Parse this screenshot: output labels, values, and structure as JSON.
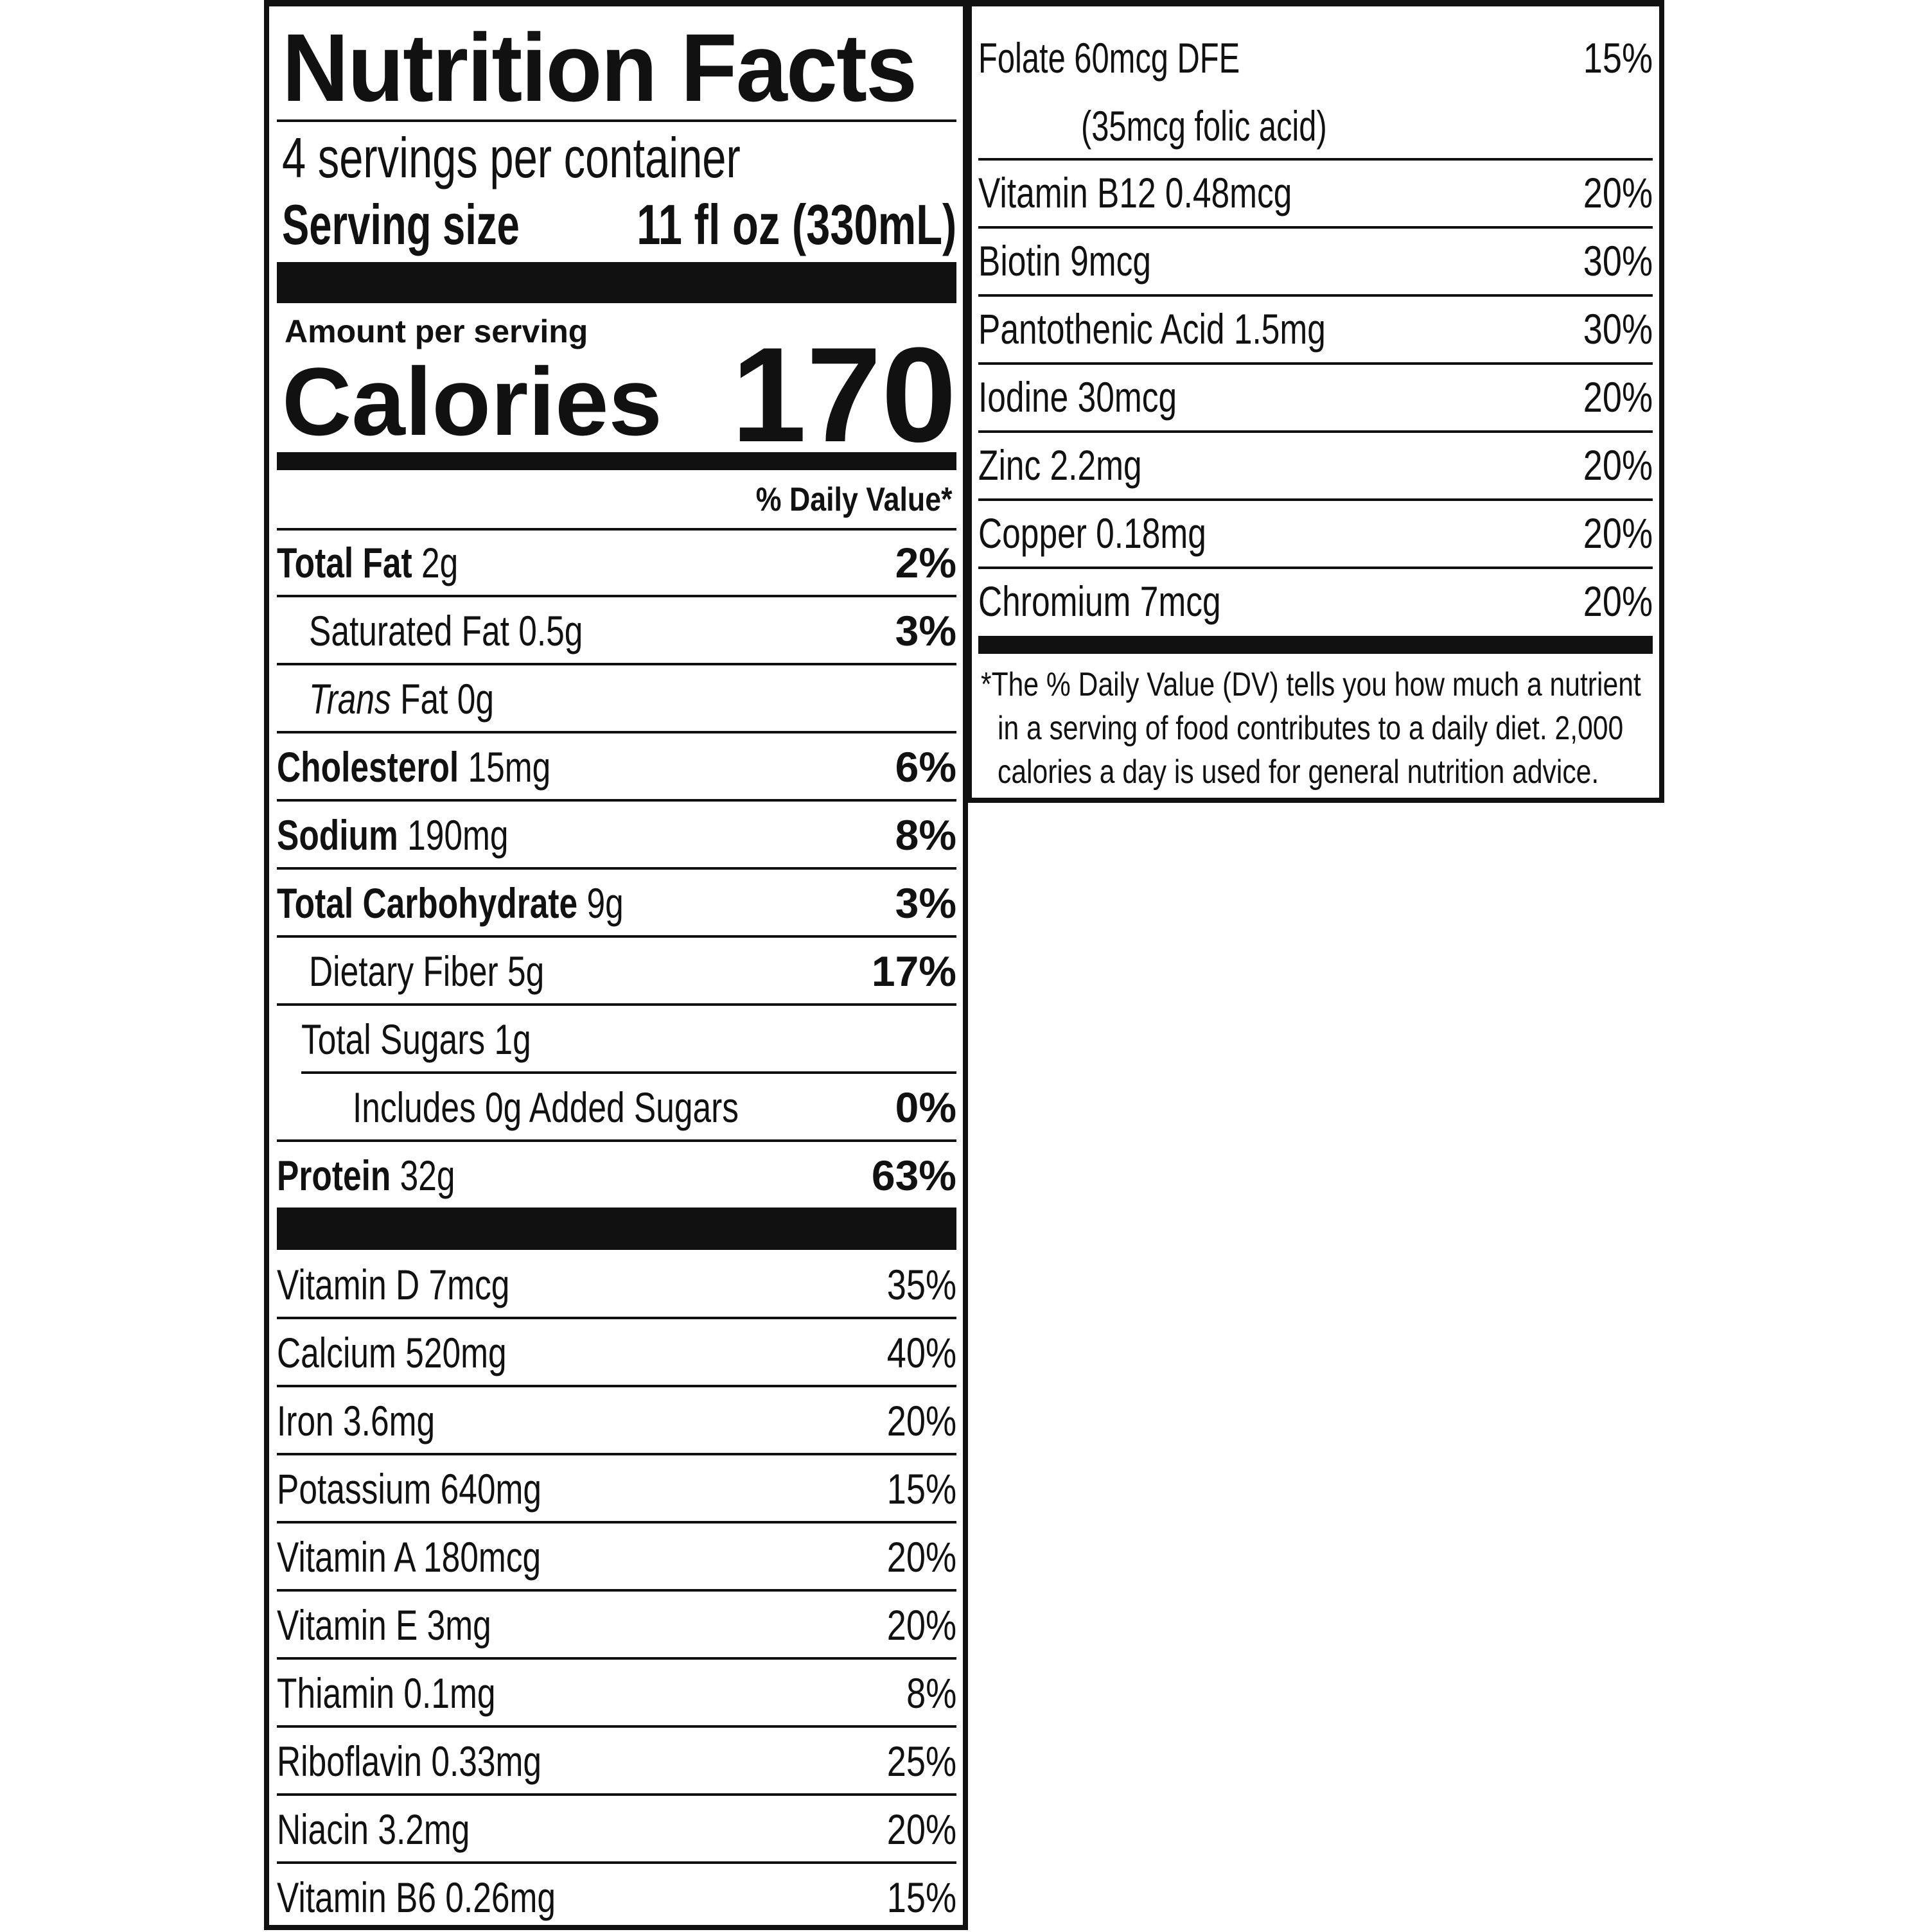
{
  "title": "Nutrition Facts",
  "servings": "4 servings per container",
  "serving_size_label": "Serving size",
  "serving_size_value": "11 fl oz (330mL)",
  "amount_per_serving": "Amount per serving",
  "calories_label": "Calories",
  "calories_value": "170",
  "daily_value_header": "% Daily Value*",
  "nutrients": [
    {
      "name": "Total Fat",
      "amount": " 2g",
      "dv": "2%"
    },
    {
      "name": "Saturated Fat 0.5g",
      "dv": "3%"
    },
    {
      "name_italic": "Trans",
      "name_rest": " Fat 0g"
    },
    {
      "name": "Cholesterol",
      "amount": " 15mg",
      "dv": "6%"
    },
    {
      "name": "Sodium",
      "amount": " 190mg",
      "dv": "8%"
    },
    {
      "name": "Total Carbohydrate",
      "amount": " 9g",
      "dv": "3%"
    },
    {
      "name": "Dietary Fiber 5g",
      "dv": "17%"
    },
    {
      "name": "Total Sugars 1g"
    },
    {
      "name": "Includes 0g Added Sugars",
      "dv": "0%"
    },
    {
      "name": "Protein",
      "amount": " 32g",
      "dv": "63%"
    }
  ],
  "vitamins_left": [
    {
      "name": "Vitamin D 7mcg",
      "dv": "35%"
    },
    {
      "name": "Calcium 520mg",
      "dv": "40%"
    },
    {
      "name": "Iron 3.6mg",
      "dv": "20%"
    },
    {
      "name": "Potassium 640mg",
      "dv": "15%"
    },
    {
      "name": "Vitamin A 180mcg",
      "dv": "20%"
    },
    {
      "name": "Vitamin E 3mg",
      "dv": "20%"
    },
    {
      "name": "Thiamin 0.1mg",
      "dv": "8%"
    },
    {
      "name": "Riboflavin 0.33mg",
      "dv": "25%"
    },
    {
      "name": "Niacin 3.2mg",
      "dv": "20%"
    },
    {
      "name": "Vitamin B6 0.26mg",
      "dv": "15%"
    }
  ],
  "folate": {
    "name": "Folate 60mcg DFE",
    "dv": "15%",
    "note": "(35mcg folic acid)"
  },
  "vitamins_right": [
    {
      "name": "Vitamin B12 0.48mcg",
      "dv": "20%"
    },
    {
      "name": "Biotin 9mcg",
      "dv": "30%"
    },
    {
      "name": "Pantothenic Acid 1.5mg",
      "dv": "30%"
    },
    {
      "name": "Iodine 30mcg",
      "dv": "20%"
    },
    {
      "name": "Zinc 2.2mg",
      "dv": "20%"
    },
    {
      "name": "Copper 0.18mg",
      "dv": "20%"
    },
    {
      "name": "Chromium 7mcg",
      "dv": "20%"
    }
  ],
  "footnote": [
    "*The % Daily Value (DV) tells you how much a nutrient",
    "in a serving of food contributes to a daily diet. 2,000",
    "calories a day is used for general nutrition advice."
  ]
}
